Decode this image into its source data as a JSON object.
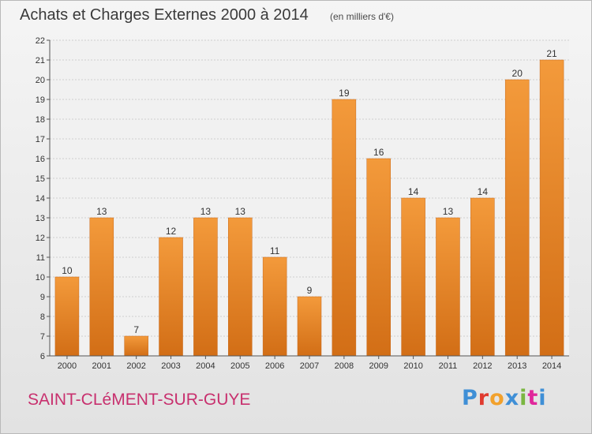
{
  "header": {
    "title": "Achats et Charges Externes 2000 à 2014",
    "unit": "(en milliers d'€)"
  },
  "footer": {
    "commune": "SAINT-CLéMENT-SUR-GUYE",
    "brand": "Proxiti",
    "brand_colors": [
      "#3f8fd6",
      "#e03a2f",
      "#f2a12c",
      "#3f8fd6",
      "#7ab641",
      "#e0279b",
      "#3f8fd6"
    ]
  },
  "chart_data": {
    "type": "bar",
    "categories": [
      "2000",
      "2001",
      "2002",
      "2003",
      "2004",
      "2005",
      "2006",
      "2007",
      "2008",
      "2009",
      "2010",
      "2011",
      "2012",
      "2013",
      "2014"
    ],
    "values": [
      10,
      13,
      7,
      12,
      13,
      13,
      11,
      9,
      19,
      16,
      14,
      13,
      14,
      20,
      21
    ],
    "ylim": [
      6,
      22
    ],
    "yticks": [
      6,
      7,
      8,
      9,
      10,
      11,
      12,
      13,
      14,
      15,
      16,
      17,
      18,
      19,
      20,
      21,
      22
    ],
    "ytick_labels": [
      "6",
      "7",
      "8",
      "9",
      "10",
      "11",
      "12",
      "13",
      "14",
      "15",
      "16",
      "17",
      "18",
      "19",
      "20",
      "21",
      "22"
    ],
    "grid": true,
    "bar_color": "#f39a3b",
    "bar_color_dark": "#d26e16",
    "title": "Achats et Charges Externes 2000 à 2014"
  }
}
